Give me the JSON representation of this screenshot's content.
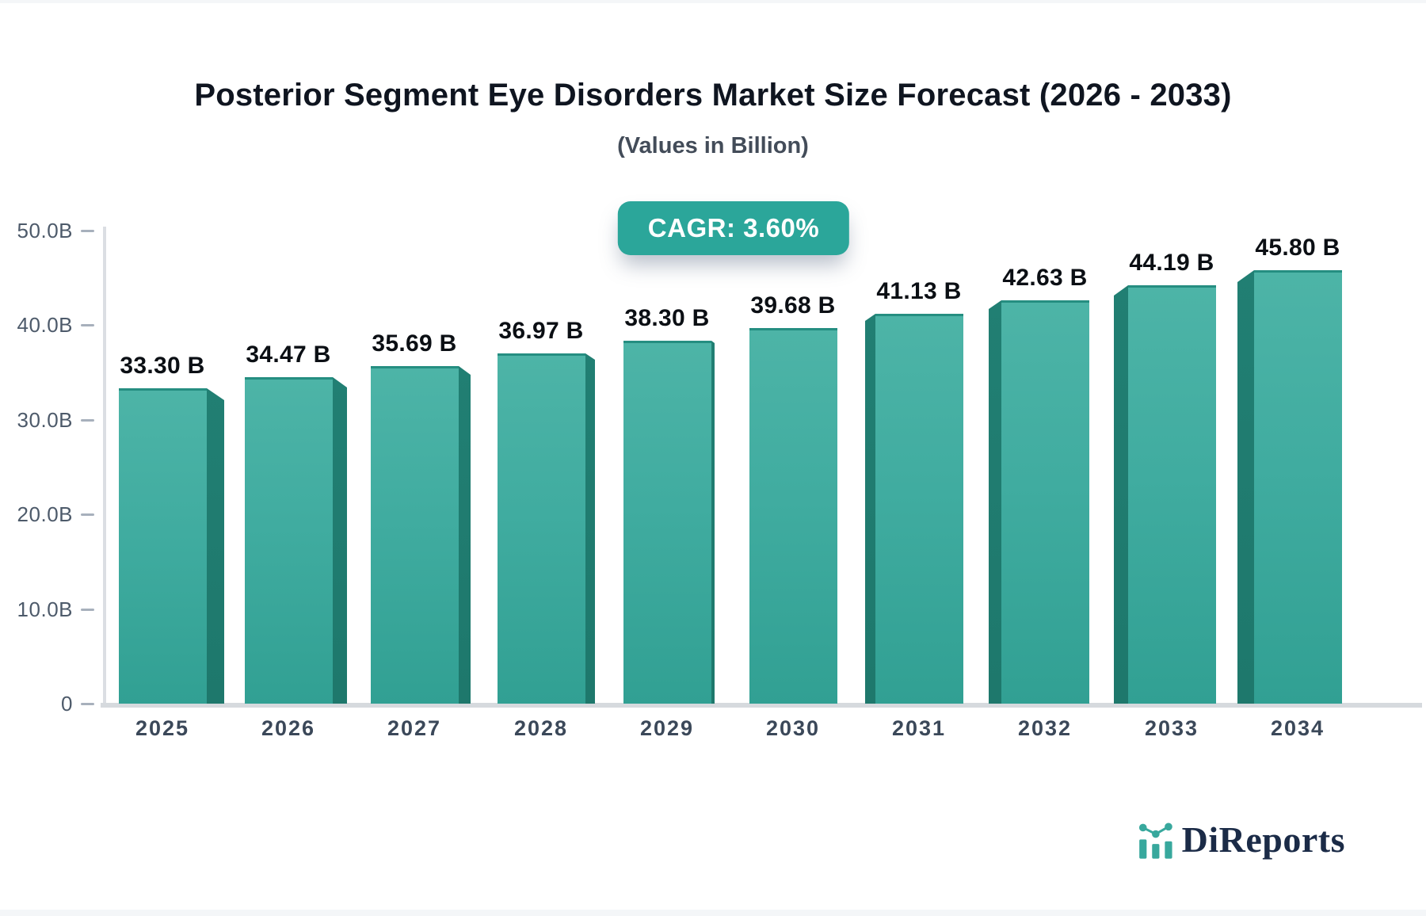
{
  "title": "Posterior Segment Eye Disorders Market Size Forecast (2026 - 2033)",
  "subtitle": "(Values in Billion)",
  "badge": {
    "label": "CAGR: 3.60%",
    "bg_color": "#2ba69a",
    "text_color": "#ffffff"
  },
  "chart_data": {
    "type": "bar",
    "categories": [
      "2025",
      "2026",
      "2027",
      "2028",
      "2029",
      "2030",
      "2031",
      "2032",
      "2033",
      "2034"
    ],
    "values": [
      33.3,
      34.47,
      35.69,
      36.97,
      38.3,
      39.68,
      41.13,
      42.63,
      44.19,
      45.8
    ],
    "value_labels": [
      "33.30 B",
      "34.47 B",
      "35.69 B",
      "36.97 B",
      "38.30 B",
      "39.68 B",
      "41.13 B",
      "42.63 B",
      "44.19 B",
      "45.80 B"
    ],
    "title": "Posterior Segment Eye Disorders Market Size Forecast (2026 - 2033)",
    "subtitle": "(Values in Billion)",
    "xlabel": "",
    "ylabel": "",
    "ylim": [
      0,
      50
    ],
    "ytick_values": [
      0,
      10,
      20,
      30,
      40,
      50
    ],
    "ytick_labels": [
      "0",
      "10.0B",
      "20.0B",
      "30.0B",
      "40.0B",
      "50.0B"
    ],
    "grid": false,
    "legend": "none",
    "bar_style_3d": true,
    "colors": {
      "bar_top": "#4db4a7",
      "bar_bottom": "#31a093",
      "bar_edge": "#258e81",
      "bar_side": "#1e786c",
      "axis_line": "#d6dade",
      "tick_text": "#4d5a6a",
      "category_text": "#3b4859",
      "value_text": "#0b0f14"
    }
  },
  "footer": {
    "brand": "DiReports",
    "brand_color": "#1b2b47",
    "icon_color": "#38a89d"
  }
}
